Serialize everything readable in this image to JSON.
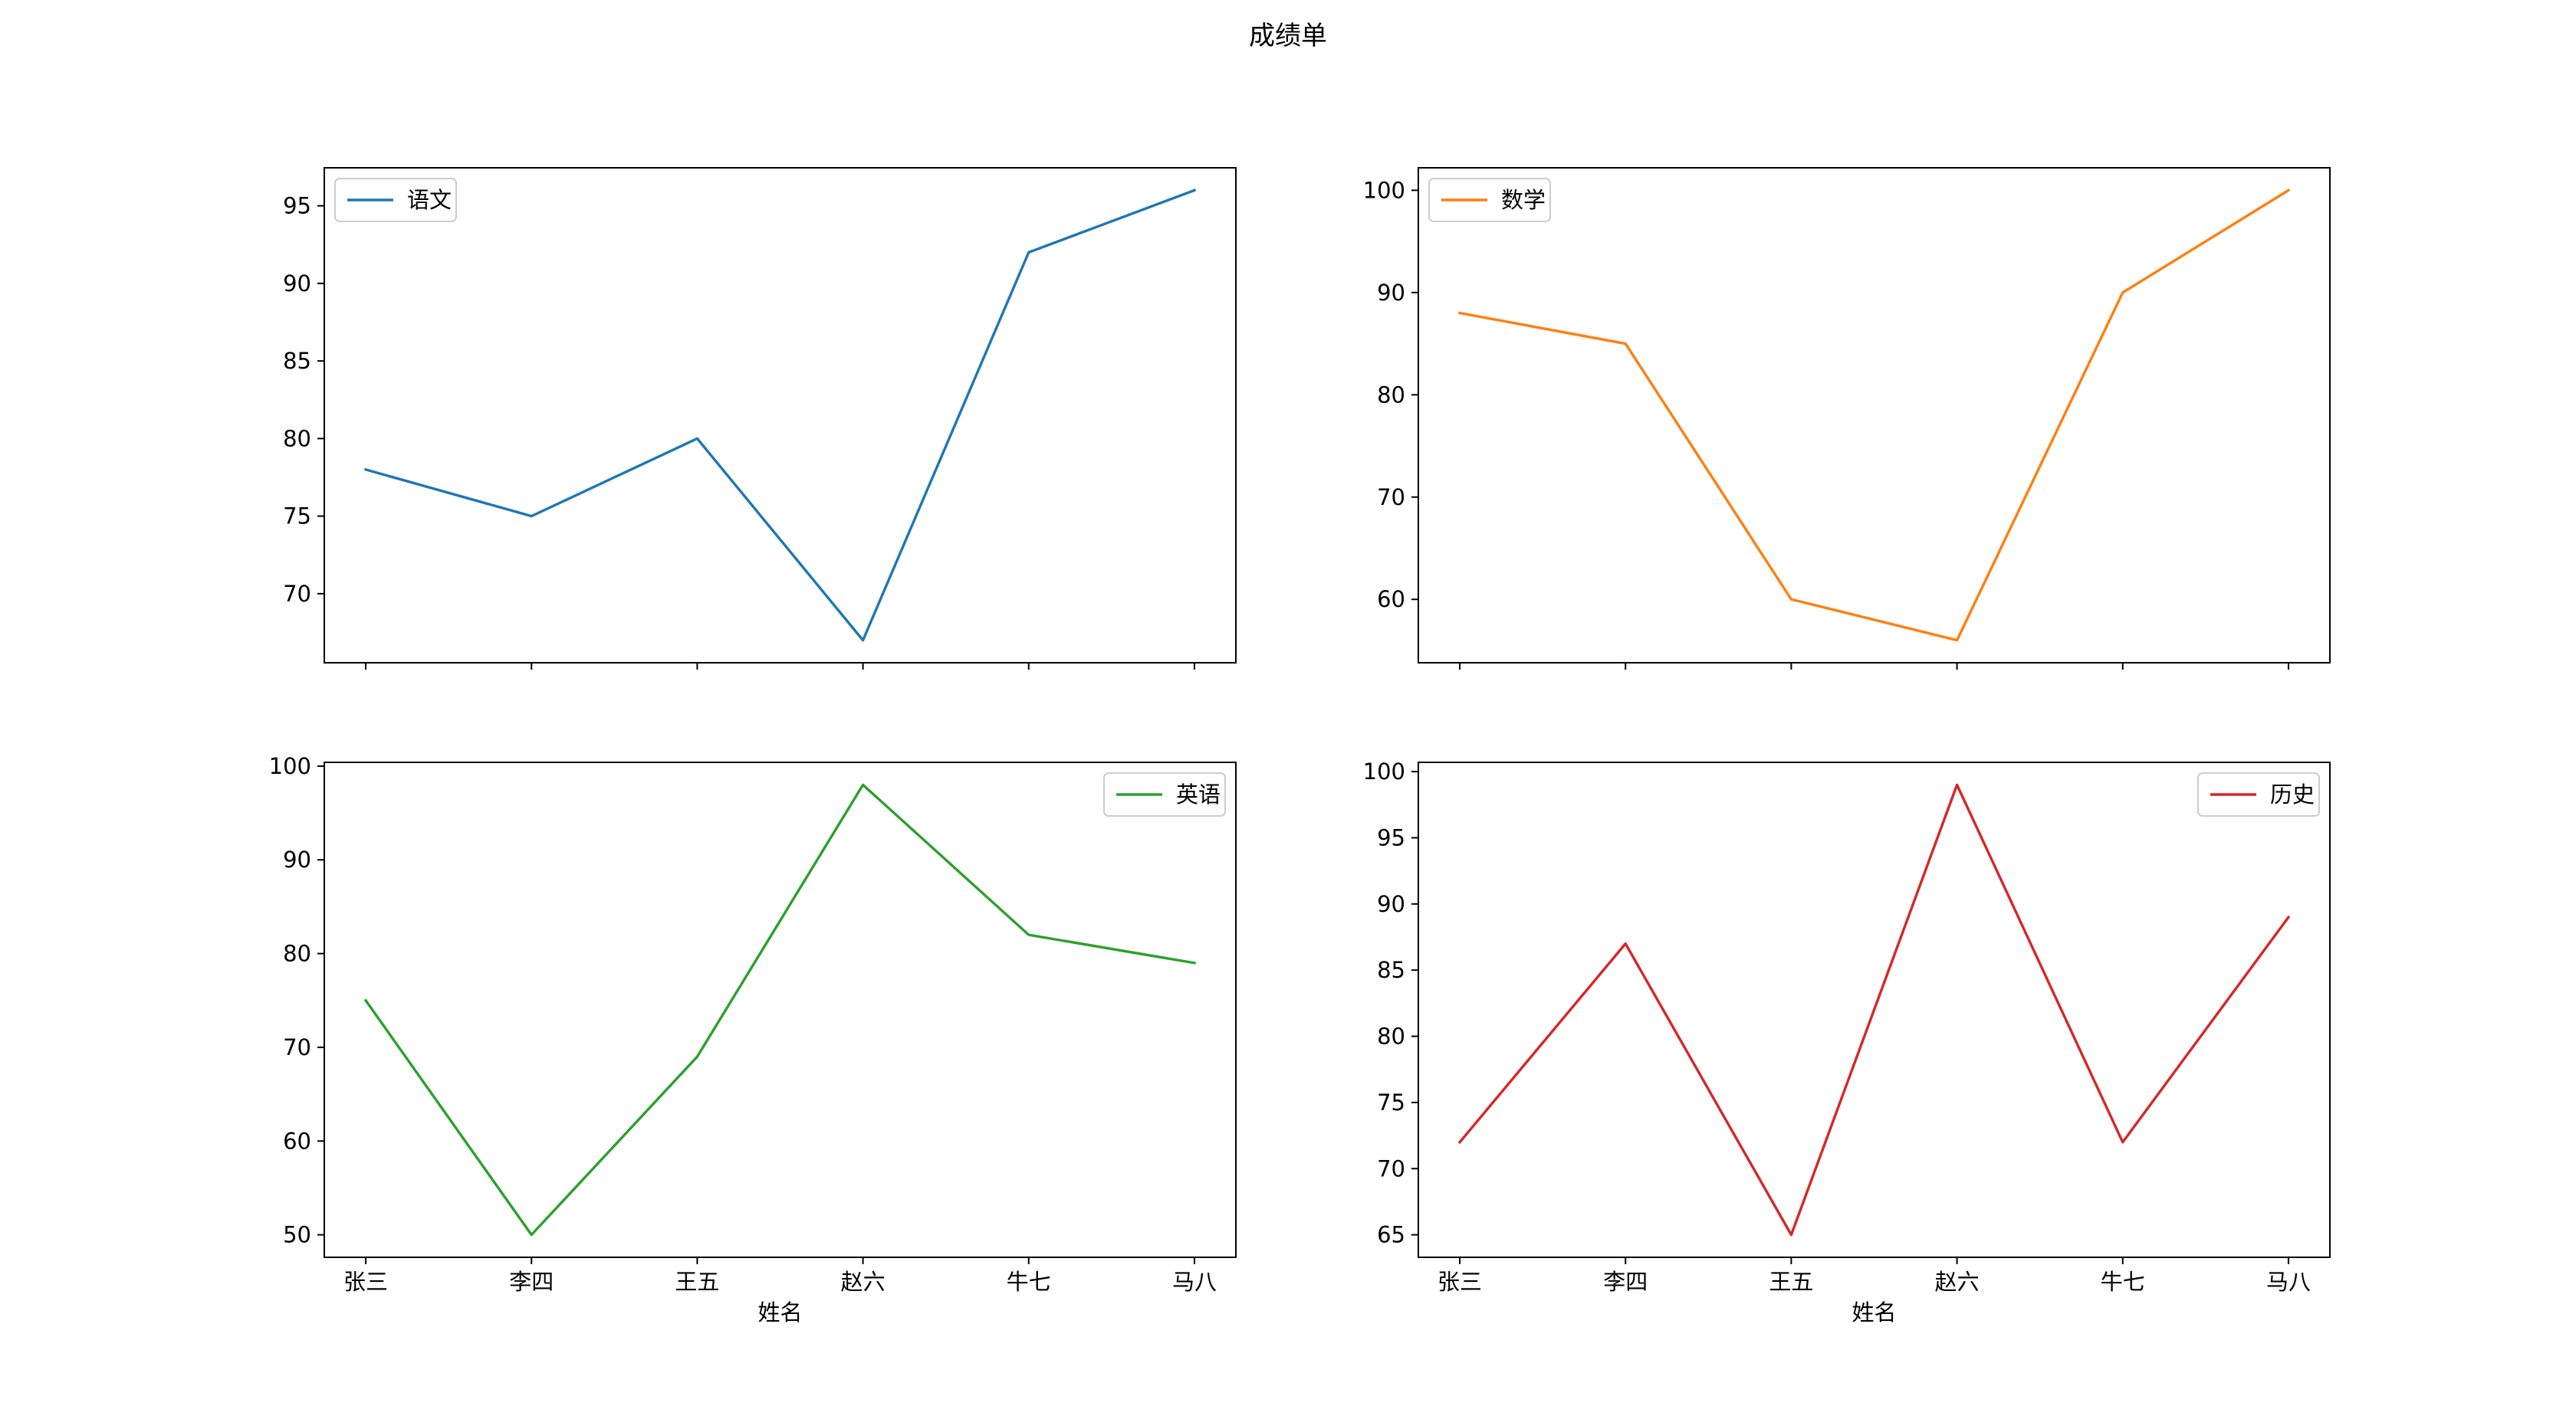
{
  "figure": {
    "suptitle": "成绩单",
    "xlabel": "姓名"
  },
  "colors": {
    "blue": "#1f77b4",
    "orange": "#ff7f0e",
    "green": "#2ca02c",
    "red": "#d62728"
  },
  "chart_data": [
    {
      "type": "line",
      "categories": [
        "张三",
        "李四",
        "王五",
        "赵六",
        "牛七",
        "马八"
      ],
      "series": [
        {
          "name": "语文",
          "values": [
            78,
            75,
            80,
            67,
            92,
            96
          ],
          "color": "#1f77b4"
        }
      ],
      "ylim": [
        65.55,
        97.45
      ],
      "yticks": [
        70,
        75,
        80,
        85,
        90,
        95
      ],
      "xlabel": "",
      "show_x_tick_labels": false,
      "legend_position": "upper-left",
      "grid": false
    },
    {
      "type": "line",
      "categories": [
        "张三",
        "李四",
        "王五",
        "赵六",
        "牛七",
        "马八"
      ],
      "series": [
        {
          "name": "数学",
          "values": [
            88,
            85,
            60,
            56,
            90,
            100
          ],
          "color": "#ff7f0e"
        }
      ],
      "ylim": [
        53.8,
        102.2
      ],
      "yticks": [
        60,
        70,
        80,
        90,
        100
      ],
      "xlabel": "",
      "show_x_tick_labels": false,
      "legend_position": "upper-left",
      "grid": false
    },
    {
      "type": "line",
      "categories": [
        "张三",
        "李四",
        "王五",
        "赵六",
        "牛七",
        "马八"
      ],
      "series": [
        {
          "name": "英语",
          "values": [
            75,
            50,
            69,
            98,
            82,
            79
          ],
          "color": "#2ca02c"
        }
      ],
      "ylim": [
        47.6,
        100.4
      ],
      "yticks": [
        50,
        60,
        70,
        80,
        90,
        100
      ],
      "xlabel": "姓名",
      "show_x_tick_labels": true,
      "legend_position": "upper-right",
      "grid": false
    },
    {
      "type": "line",
      "categories": [
        "张三",
        "李四",
        "王五",
        "赵六",
        "牛七",
        "马八"
      ],
      "series": [
        {
          "name": "历史",
          "values": [
            72,
            87,
            65,
            99,
            72,
            89
          ],
          "color": "#d62728"
        }
      ],
      "ylim": [
        63.3,
        100.7
      ],
      "yticks": [
        65,
        70,
        75,
        80,
        85,
        90,
        95,
        100
      ],
      "xlabel": "姓名",
      "show_x_tick_labels": true,
      "legend_position": "upper-right",
      "grid": false
    }
  ]
}
